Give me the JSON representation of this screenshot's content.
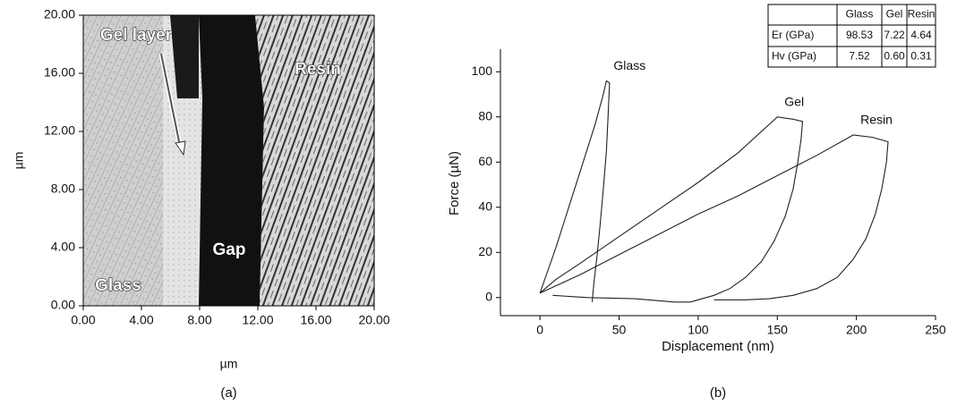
{
  "chart_data": [
    {
      "type": "image",
      "xlim": [
        0,
        20
      ],
      "ylim": [
        0,
        20
      ],
      "xticks": [
        {
          "value": 0,
          "label": "0.00"
        },
        {
          "value": 4,
          "label": "4.00"
        },
        {
          "value": 8,
          "label": "8.00"
        },
        {
          "value": 12,
          "label": "12.00"
        },
        {
          "value": 16,
          "label": "16.00"
        },
        {
          "value": 20,
          "label": "20.00"
        }
      ],
      "yticks": [
        {
          "value": 0,
          "label": "0.00"
        },
        {
          "value": 4,
          "label": "4.00"
        },
        {
          "value": 8,
          "label": "8.00"
        },
        {
          "value": 12,
          "label": "12.00"
        },
        {
          "value": 16,
          "label": "16.00"
        },
        {
          "value": 20,
          "label": "20.00"
        }
      ],
      "xlabel": "µm",
      "ylabel": "µm",
      "annotations": [
        "Gel layer",
        "Resin",
        "Gap",
        "Glass"
      ],
      "caption": "(a)"
    },
    {
      "type": "line",
      "xlim": [
        -25,
        250
      ],
      "ylim": [
        -8,
        110
      ],
      "xticks": [
        0,
        50,
        100,
        150,
        200,
        250
      ],
      "yticks": [
        0,
        20,
        40,
        60,
        80,
        100
      ],
      "xlabel": "Displacement (nm)",
      "ylabel": "Force (µN)",
      "series": [
        {
          "name": "Glass",
          "color": "#222222",
          "x": [
            0,
            5,
            10,
            15,
            20,
            25,
            30,
            35,
            40,
            42,
            44,
            43,
            42,
            40,
            38,
            36,
            34,
            33
          ],
          "values": [
            2,
            12,
            22,
            33,
            44,
            55,
            66,
            77,
            90,
            96,
            95,
            80,
            65,
            48,
            32,
            18,
            6,
            -2
          ]
        },
        {
          "name": "Gel",
          "color": "#222222",
          "x": [
            0,
            10,
            25,
            50,
            75,
            100,
            125,
            150,
            160,
            166,
            165,
            163,
            160,
            155,
            148,
            140,
            130,
            120,
            110,
            100,
            95,
            85,
            60,
            30,
            8
          ],
          "values": [
            2,
            8,
            15,
            27,
            39,
            51,
            64,
            80,
            79,
            78,
            70,
            60,
            48,
            36,
            25,
            16,
            9,
            4,
            1,
            -1,
            -2,
            -2,
            -0.5,
            0,
            1
          ]
        },
        {
          "name": "Resin",
          "color": "#222222",
          "x": [
            0,
            25,
            50,
            75,
            100,
            125,
            150,
            175,
            198,
            210,
            220,
            219,
            216,
            212,
            206,
            198,
            188,
            175,
            160,
            145,
            130,
            110
          ],
          "values": [
            2,
            10,
            19,
            28,
            37,
            45,
            54,
            63,
            72,
            71,
            69,
            60,
            48,
            37,
            26,
            17,
            9,
            4,
            1,
            -0.5,
            -1,
            -1
          ]
        }
      ],
      "table": {
        "columns": [
          "Glass",
          "Gel",
          "Resin"
        ],
        "rows": [
          {
            "label": "Er (GPa)",
            "cells": [
              "98.53",
              "7.22",
              "4.64"
            ]
          },
          {
            "label": "Hv (GPa)",
            "cells": [
              "7.52",
              "0.60",
              "0.31"
            ]
          }
        ]
      },
      "caption": "(b)"
    }
  ]
}
